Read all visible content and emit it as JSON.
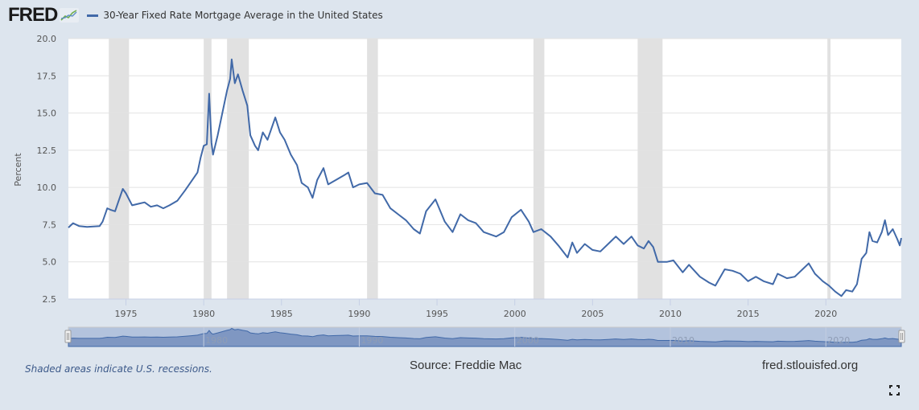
{
  "header": {
    "logo_text": "FRED",
    "logo_icon": "chart-trend-icon",
    "series_label": "30-Year Fixed Rate Mortgage Average in the United States"
  },
  "colors": {
    "series": "#4169a8",
    "recession": "#e1e1e1",
    "background": "#dde5ee",
    "plot": "#ffffff",
    "navigator_fill": "#7f97c2",
    "navigator_mask": "#b3c3dd"
  },
  "footer": {
    "note": "Shaded areas indicate U.S. recessions.",
    "source": "Source: Freddie Mac",
    "url": "fred.stlouisfed.org",
    "fullscreen_icon": "fullscreen-icon"
  },
  "chart_data": {
    "type": "line",
    "title": "30-Year Fixed Rate Mortgage Average in the United States",
    "xlabel": "",
    "ylabel": "Percent",
    "xlim": [
      1971.3,
      2024.85
    ],
    "ylim": [
      2.5,
      20.0
    ],
    "grid": true,
    "legend": "top-left",
    "y_ticks": [
      "2.5",
      "5.0",
      "7.5",
      "10.0",
      "12.5",
      "15.0",
      "17.5",
      "20.0"
    ],
    "x_ticks": [
      "1975",
      "1980",
      "1985",
      "1990",
      "1995",
      "2000",
      "2005",
      "2010",
      "2015",
      "2020"
    ],
    "navigator_ticks": [
      "1980",
      "1990",
      "2000",
      "2010",
      "2020"
    ],
    "recessions": [
      [
        1973.9,
        1975.2
      ],
      [
        1980.0,
        1980.5
      ],
      [
        1981.5,
        1982.9
      ],
      [
        1990.5,
        1991.2
      ],
      [
        2001.2,
        2001.9
      ],
      [
        2007.9,
        2009.5
      ],
      [
        2020.1,
        2020.3
      ]
    ],
    "series": [
      {
        "name": "30-Year Fixed Rate Mortgage Average in the United States",
        "x": [
          1971.3,
          1971.6,
          1972.0,
          1972.5,
          1973.3,
          1973.5,
          1973.8,
          1974.0,
          1974.3,
          1974.5,
          1974.8,
          1975.0,
          1975.4,
          1975.8,
          1976.2,
          1976.6,
          1977.0,
          1977.4,
          1977.8,
          1978.3,
          1978.8,
          1979.2,
          1979.6,
          1979.8,
          1980.0,
          1980.2,
          1980.35,
          1980.5,
          1980.6,
          1980.9,
          1981.2,
          1981.5,
          1981.7,
          1981.8,
          1982.0,
          1982.2,
          1982.5,
          1982.8,
          1983.0,
          1983.3,
          1983.5,
          1983.8,
          1984.1,
          1984.3,
          1984.6,
          1984.9,
          1985.2,
          1985.6,
          1986.0,
          1986.3,
          1986.7,
          1987.0,
          1987.3,
          1987.7,
          1988.0,
          1988.5,
          1989.0,
          1989.3,
          1989.6,
          1990.0,
          1990.5,
          1991.0,
          1991.5,
          1992.0,
          1992.5,
          1993.0,
          1993.5,
          1993.9,
          1994.3,
          1994.9,
          1995.5,
          1996.0,
          1996.5,
          1997.0,
          1997.5,
          1998.0,
          1998.8,
          1999.3,
          1999.8,
          2000.4,
          2000.9,
          2001.2,
          2001.7,
          2002.3,
          2002.8,
          2003.4,
          2003.7,
          2004.0,
          2004.5,
          2005.0,
          2005.5,
          2006.0,
          2006.5,
          2007.0,
          2007.5,
          2007.9,
          2008.3,
          2008.6,
          2008.9,
          2009.2,
          2009.8,
          2010.2,
          2010.8,
          2011.2,
          2011.9,
          2012.5,
          2012.9,
          2013.5,
          2014.0,
          2014.5,
          2015.0,
          2015.5,
          2016.0,
          2016.6,
          2016.9,
          2017.5,
          2018.0,
          2018.5,
          2018.9,
          2019.3,
          2019.8,
          2020.2,
          2020.6,
          2021.0,
          2021.3,
          2021.7,
          2022.0,
          2022.3,
          2022.6,
          2022.8,
          2023.0,
          2023.3,
          2023.6,
          2023.8,
          2024.0,
          2024.3,
          2024.6,
          2024.75,
          2024.85
        ],
        "values": [
          7.3,
          7.6,
          7.4,
          7.35,
          7.4,
          7.7,
          8.6,
          8.5,
          8.4,
          9.0,
          9.9,
          9.6,
          8.8,
          8.9,
          9.0,
          8.7,
          8.8,
          8.6,
          8.8,
          9.1,
          9.8,
          10.4,
          11.0,
          12.0,
          12.8,
          12.9,
          16.3,
          13.0,
          12.2,
          13.5,
          15.0,
          16.5,
          17.3,
          18.6,
          17.0,
          17.6,
          16.5,
          15.5,
          13.5,
          12.8,
          12.5,
          13.7,
          13.2,
          13.8,
          14.7,
          13.7,
          13.2,
          12.2,
          11.5,
          10.3,
          10.0,
          9.3,
          10.5,
          11.3,
          10.2,
          10.5,
          10.8,
          11.0,
          10.0,
          10.2,
          10.3,
          9.6,
          9.5,
          8.6,
          8.2,
          7.8,
          7.2,
          6.9,
          8.4,
          9.2,
          7.7,
          7.0,
          8.2,
          7.8,
          7.6,
          7.0,
          6.7,
          7.0,
          8.0,
          8.5,
          7.7,
          7.0,
          7.2,
          6.7,
          6.1,
          5.3,
          6.3,
          5.6,
          6.2,
          5.8,
          5.7,
          6.2,
          6.7,
          6.2,
          6.7,
          6.1,
          5.9,
          6.4,
          6.0,
          5.0,
          5.0,
          5.1,
          4.3,
          4.8,
          4.0,
          3.6,
          3.4,
          4.5,
          4.4,
          4.2,
          3.7,
          4.0,
          3.7,
          3.5,
          4.2,
          3.9,
          4.0,
          4.5,
          4.9,
          4.2,
          3.7,
          3.4,
          3.0,
          2.7,
          3.1,
          3.0,
          3.5,
          5.2,
          5.6,
          7.0,
          6.4,
          6.3,
          7.0,
          7.8,
          6.8,
          7.2,
          6.5,
          6.1,
          6.6
        ]
      }
    ]
  }
}
